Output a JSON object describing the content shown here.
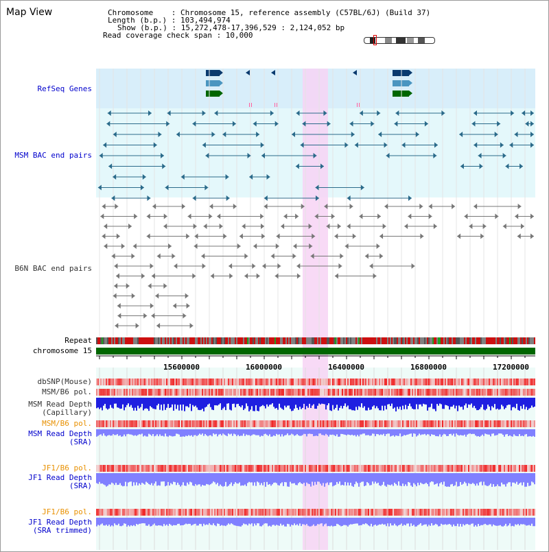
{
  "title": "Map View",
  "info": {
    "chromosome": "Chromosome    : Chromosome 15, reference assembly (C57BL/6J) (Build 37)",
    "length": "Length (b.p.) : 103,494,974",
    "show": "Show (b.p.) : 15,272,478-17,396,529 : 2,124,052 bp",
    "coverage": "Read coverage check span : 10,000"
  },
  "tracks": {
    "refseq": "RefSeq Genes",
    "msm_bac": "MSM BAC end pairs",
    "b6n_bac": "B6N BAC end pairs",
    "repeat": "Repeat",
    "chromosome": "chromosome 15",
    "dbsnp": "dbSNP(Mouse)",
    "msm_b6_pol": "MSM/B6 pol.",
    "msm_depth_cap_1": "MSM Read Depth",
    "msm_depth_cap_2": "(Capillary)",
    "msm_b6_pol2": "MSM/B6 pol.",
    "msm_depth_sra_1": "MSM Read Depth",
    "msm_depth_sra_2": "(SRA)",
    "jf1_b6_pol": "JF1/B6 pol.",
    "jf1_depth_sra_1": "JF1 Read Depth",
    "jf1_depth_sra_2": "(SRA)",
    "jf1_b6_pol2": "JF1/B6 pol.",
    "jf1_depth_trim_1": "JF1 Read Depth",
    "jf1_depth_trim_2": "(SRA trimmed)"
  },
  "axis": {
    "ticks": [
      "15600000",
      "16000000",
      "16400000",
      "16800000",
      "17200000"
    ],
    "tick_values": [
      15600000,
      16000000,
      16400000,
      16800000,
      17200000
    ],
    "range": [
      15272478,
      17396529
    ]
  },
  "highlight_range": [
    16290000,
    16410000
  ],
  "colors": {
    "label_blue": "#0000cc",
    "label_orange": "#e89000",
    "refseq_bg": "#d8eefa",
    "bac_bg": "#e4f8fb",
    "highlight": "#f7d4f4",
    "gene_dark": "#0a3a6e",
    "gene_mid": "#4a95c0",
    "gene_green": "#006600",
    "msm_feature": "#2a6a8a",
    "b6n_feature": "#777777",
    "chromosome_bar": "#006600",
    "depth_blue": "#1f1fe0",
    "depth_light": "#8080ff"
  }
}
